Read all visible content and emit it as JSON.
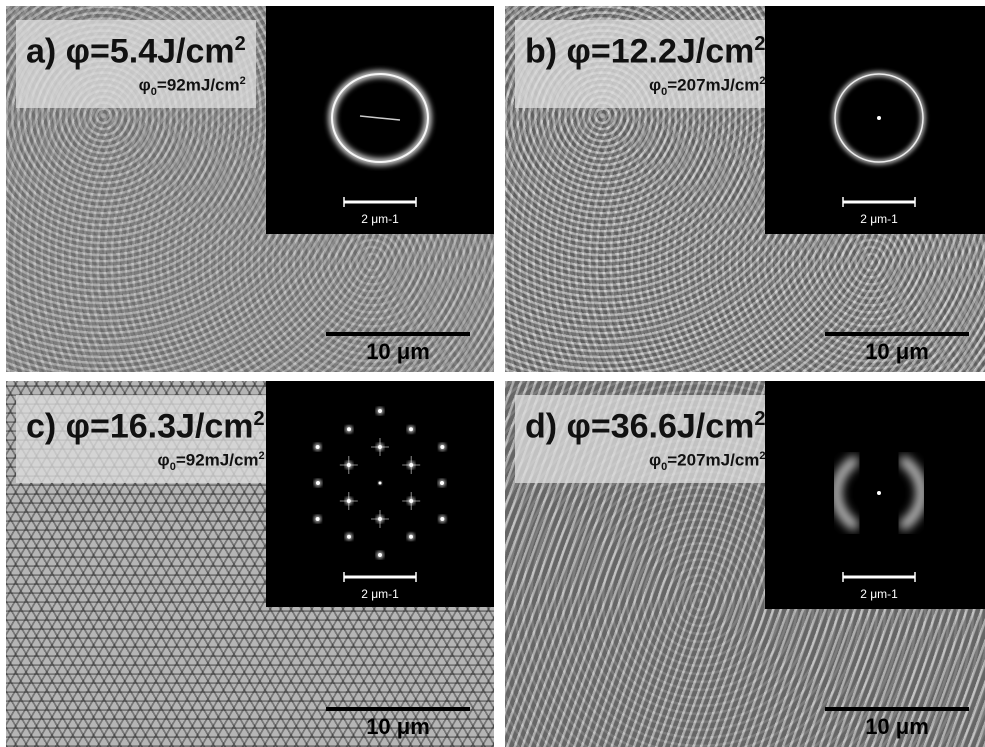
{
  "panels": [
    {
      "main_prefix": "a) φ=5.4J/cm",
      "main_exp": "2",
      "sub_base": "φ",
      "sub_index": "0",
      "sub_value": "=92mJ/cm",
      "sub_exp": "2",
      "fft_scale": "2 μm-1",
      "scale": "10 μm"
    },
    {
      "main_prefix": "b) φ=12.2J/cm",
      "main_exp": "2",
      "sub_base": "φ",
      "sub_index": "0",
      "sub_value": "=207mJ/cm",
      "sub_exp": "2",
      "fft_scale": "2 μm-1",
      "scale": "10 μm"
    },
    {
      "main_prefix": "c) φ=16.3J/cm",
      "main_exp": "2",
      "sub_base": "φ",
      "sub_index": "0",
      "sub_value": "=92mJ/cm",
      "sub_exp": "2",
      "fft_scale": "2 μm-1",
      "scale": "10 μm"
    },
    {
      "main_prefix": "d) φ=36.6J/cm",
      "main_exp": "2",
      "sub_base": "φ",
      "sub_index": "0",
      "sub_value": "=207mJ/cm",
      "sub_exp": "2",
      "fft_scale": "2 μm-1",
      "scale": "10 μm"
    }
  ]
}
